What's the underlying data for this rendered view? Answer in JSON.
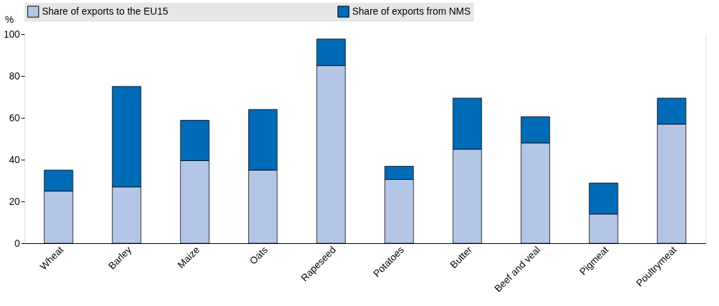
{
  "chart_data": {
    "type": "bar",
    "stacked": true,
    "ylabel": "%",
    "categories": [
      "Wheat",
      "Barley",
      "Maize",
      "Oats",
      "Rapeseed",
      "Potatoes",
      "Butter",
      "Beef and veal",
      "Pigmeat",
      "Poultrymeat"
    ],
    "series": [
      {
        "name": "Share of exports to the EU15",
        "color": "#b3c6e7",
        "values": [
          25,
          27,
          39.5,
          35,
          85,
          30.5,
          45,
          48,
          14,
          57
        ]
      },
      {
        "name": "Share of exports from NMS",
        "color": "#006bb6",
        "values": [
          10,
          48,
          19.3,
          29,
          12.7,
          6.3,
          24.4,
          12.5,
          14.8,
          12.4
        ]
      }
    ],
    "ylim": [
      0,
      100
    ],
    "yticks": [
      0,
      20,
      40,
      60,
      80,
      100
    ],
    "grid": "y",
    "legend": "top"
  }
}
